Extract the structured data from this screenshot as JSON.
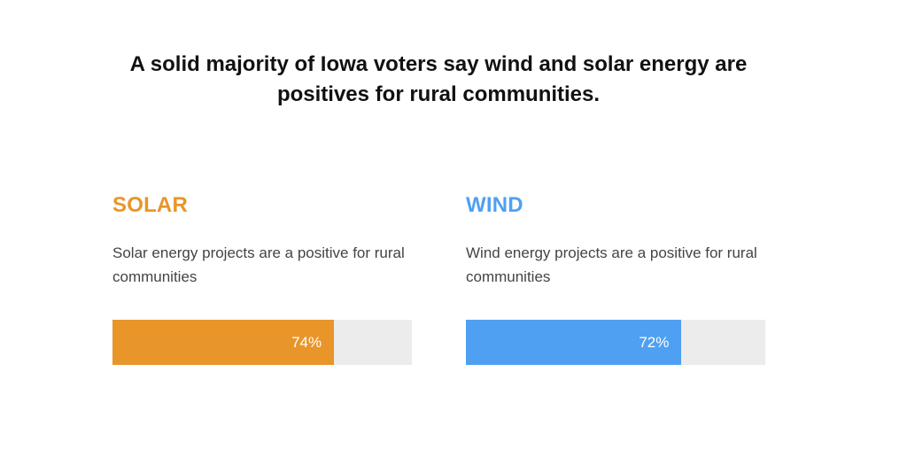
{
  "title": "A solid majority of Iowa voters say wind and solar energy are positives for rural communities.",
  "colors": {
    "solar": "#e8952a",
    "wind": "#4fa0f2",
    "track": "#ececec"
  },
  "chart_data": {
    "type": "bar",
    "title": "A solid majority of Iowa voters say wind and solar energy are positives for rural communities.",
    "categories": [
      "SOLAR",
      "WIND"
    ],
    "values": [
      74,
      72
    ],
    "value_labels": [
      "74%",
      "72%"
    ],
    "ylim": [
      0,
      100
    ],
    "grid": false,
    "panels": [
      {
        "heading": "SOLAR",
        "description": "Solar energy projects are a positive for rural communities",
        "value": 74,
        "value_label": "74%",
        "color": "#e8952a"
      },
      {
        "heading": "WIND",
        "description": "Wind energy projects are a positive for rural communities",
        "value": 72,
        "value_label": "72%",
        "color": "#4fa0f2"
      }
    ]
  }
}
